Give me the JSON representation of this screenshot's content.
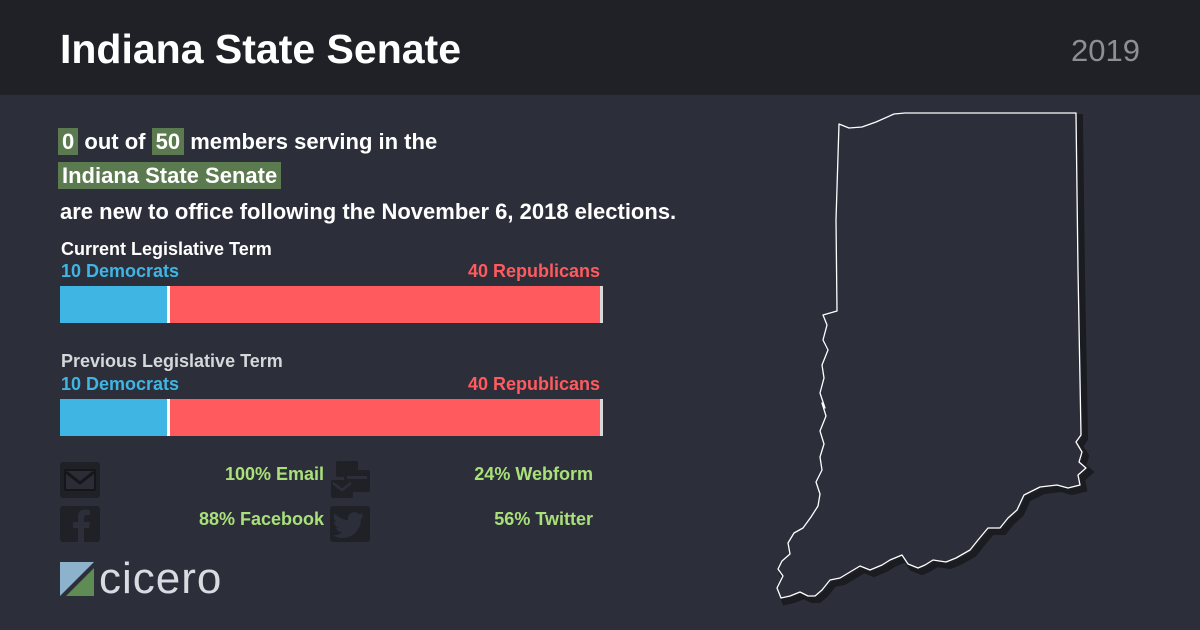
{
  "header": {
    "title": "Indiana State Senate",
    "year": "2019"
  },
  "intro": {
    "new_count": "0",
    "out_of": "out of",
    "total": "50",
    "line1_rest": "members serving in the",
    "chamber": "Indiana State Senate",
    "line3": "are new to office following the November 6, 2018 elections."
  },
  "terms": [
    {
      "title": "Current Legislative Term",
      "dem_label": "10 Democrats",
      "rep_label": "40 Republicans",
      "dem_count": 10,
      "rep_count": 40,
      "total": 50
    },
    {
      "title": "Previous Legislative Term",
      "dem_label": "10 Democrats",
      "rep_label": "40 Republicans",
      "dem_count": 10,
      "rep_count": 40,
      "total": 50
    }
  ],
  "contact": {
    "email": "100% Email",
    "webform": "24% Webform",
    "facebook": "88% Facebook",
    "twitter": "56% Twitter"
  },
  "icons": {
    "email": "envelope-icon",
    "webform": "webform-icon",
    "facebook": "facebook-icon",
    "twitter": "twitter-bird-icon"
  },
  "logo": {
    "text": "cicero"
  },
  "colors": {
    "democrat": "#3fb5e4",
    "republican": "#ff5a5e",
    "highlight": "#5c7a4f",
    "stat_green": "#a9e07a",
    "header_bg": "#1f2127",
    "body_bg": "#2c2f3a"
  }
}
